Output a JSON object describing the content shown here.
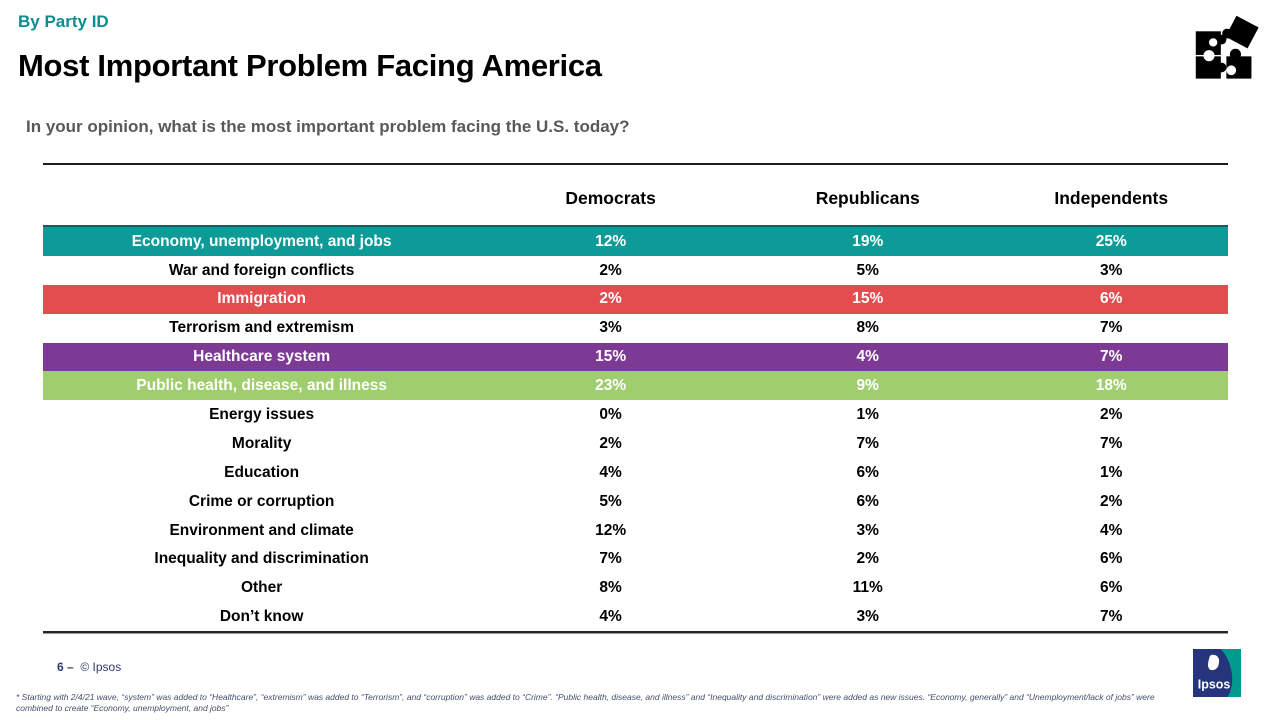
{
  "slide": {
    "kicker": "By Party ID",
    "title": "Most Important Problem Facing America",
    "question": "In your opinion, what is the most important problem facing the U.S. today?",
    "page_number": "6 –",
    "copyright": "© Ipsos",
    "footnote_line1": "* Starting with 2/4/21 wave, “system” was added to “Healthcare”, “extremism” was added to “Terrorism”, and “corruption” was added to “Crime”. “Public health, disease, and illness” and “Inequality and discrimination” were added as new issues. “Economy, generally” and “Unemployment/lack of jobs” were",
    "footnote_line2": "combined to create “Economy, unemployment, and jobs”",
    "logo_text": "Ipsos"
  },
  "colors": {
    "kicker_teal": "#0e8c90",
    "row_teal": "#0d9b98",
    "row_teal_border": "#0c5f5d",
    "row_red": "#e44d4f",
    "row_purple": "#7c3a94",
    "row_green": "#a0ce6f",
    "footer_navy": "#2e3a6e",
    "logo_navy": "#24357c",
    "logo_teal": "#009a8e"
  },
  "chart_data": {
    "type": "table",
    "title": "Most Important Problem Facing America",
    "subtitle": "In your opinion, what is the most important problem facing the U.S. today?",
    "unit": "%",
    "columns": [
      "Democrats",
      "Republicans",
      "Independents"
    ],
    "rows": [
      {
        "category": "Economy, unemployment, and jobs",
        "values": [
          12,
          19,
          25
        ],
        "highlight": "#0d9b98"
      },
      {
        "category": "War and foreign conflicts",
        "values": [
          2,
          5,
          3
        ],
        "highlight": null
      },
      {
        "category": "Immigration",
        "values": [
          2,
          15,
          6
        ],
        "highlight": "#e44d4f"
      },
      {
        "category": "Terrorism and extremism",
        "values": [
          3,
          8,
          7
        ],
        "highlight": null
      },
      {
        "category": "Healthcare system",
        "values": [
          15,
          4,
          7
        ],
        "highlight": "#7c3a94"
      },
      {
        "category": "Public health, disease, and illness",
        "values": [
          23,
          9,
          18
        ],
        "highlight": "#a0ce6f"
      },
      {
        "category": "Energy issues",
        "values": [
          0,
          1,
          2
        ],
        "highlight": null
      },
      {
        "category": "Morality",
        "values": [
          2,
          7,
          7
        ],
        "highlight": null
      },
      {
        "category": "Education",
        "values": [
          4,
          6,
          1
        ],
        "highlight": null
      },
      {
        "category": "Crime or corruption",
        "values": [
          5,
          6,
          2
        ],
        "highlight": null
      },
      {
        "category": "Environment and climate",
        "values": [
          12,
          3,
          4
        ],
        "highlight": null
      },
      {
        "category": "Inequality and discrimination",
        "values": [
          7,
          2,
          6
        ],
        "highlight": null
      },
      {
        "category": "Other",
        "values": [
          8,
          11,
          6
        ],
        "highlight": null
      },
      {
        "category": "Don’t know",
        "values": [
          4,
          3,
          7
        ],
        "highlight": null
      }
    ]
  }
}
